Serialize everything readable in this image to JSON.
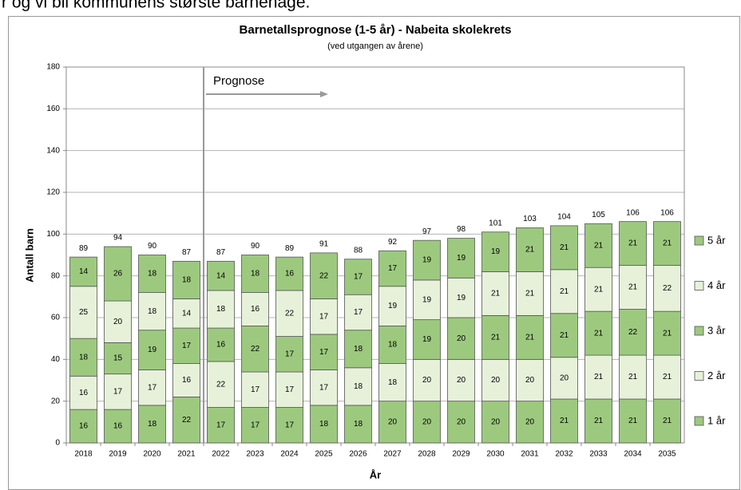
{
  "top_text": "r og vi bli kommunens største barnehage.",
  "chart_data": {
    "type": "stacked_bar",
    "title": "Barnetallsprognose (1-5 år) - Nabeita skolekrets",
    "subtitle": "(ved utgangen av årene)",
    "x_label": "År",
    "y_label": "Antall barn",
    "annotation": "Prognose",
    "categories": [
      "2018",
      "2019",
      "2020",
      "2021",
      "2022",
      "2023",
      "2024",
      "2025",
      "2026",
      "2027",
      "2028",
      "2029",
      "2030",
      "2031",
      "2032",
      "2033",
      "2034",
      "2035"
    ],
    "series": [
      {
        "name": "1 år",
        "color": "#9dc97f",
        "values": [
          16,
          16,
          18,
          22,
          17,
          17,
          17,
          18,
          18,
          20,
          20,
          20,
          20,
          20,
          21,
          21,
          21,
          21
        ]
      },
      {
        "name": "2 år",
        "color": "#e7f1da",
        "values": [
          16,
          17,
          17,
          16,
          22,
          17,
          17,
          17,
          18,
          18,
          20,
          20,
          20,
          20,
          20,
          21,
          21,
          21
        ]
      },
      {
        "name": "3 år",
        "color": "#9dc97f",
        "values": [
          18,
          15,
          19,
          17,
          16,
          22,
          17,
          17,
          18,
          18,
          19,
          20,
          21,
          21,
          21,
          21,
          22,
          21
        ]
      },
      {
        "name": "4 år",
        "color": "#e7f1da",
        "values": [
          25,
          20,
          18,
          14,
          18,
          16,
          22,
          17,
          17,
          19,
          19,
          19,
          21,
          21,
          21,
          21,
          21,
          22
        ]
      },
      {
        "name": "5 år",
        "color": "#9dc97f",
        "values": [
          14,
          26,
          18,
          18,
          14,
          18,
          16,
          22,
          17,
          17,
          19,
          19,
          19,
          21,
          21,
          21,
          21,
          21
        ]
      }
    ],
    "totals": [
      89,
      94,
      90,
      87,
      87,
      90,
      89,
      91,
      88,
      92,
      97,
      98,
      101,
      103,
      104,
      105,
      106,
      106
    ],
    "ylim": [
      0,
      180
    ],
    "yticks": [
      0,
      20,
      40,
      60,
      80,
      100,
      120,
      140,
      160,
      180
    ],
    "grid": true
  }
}
